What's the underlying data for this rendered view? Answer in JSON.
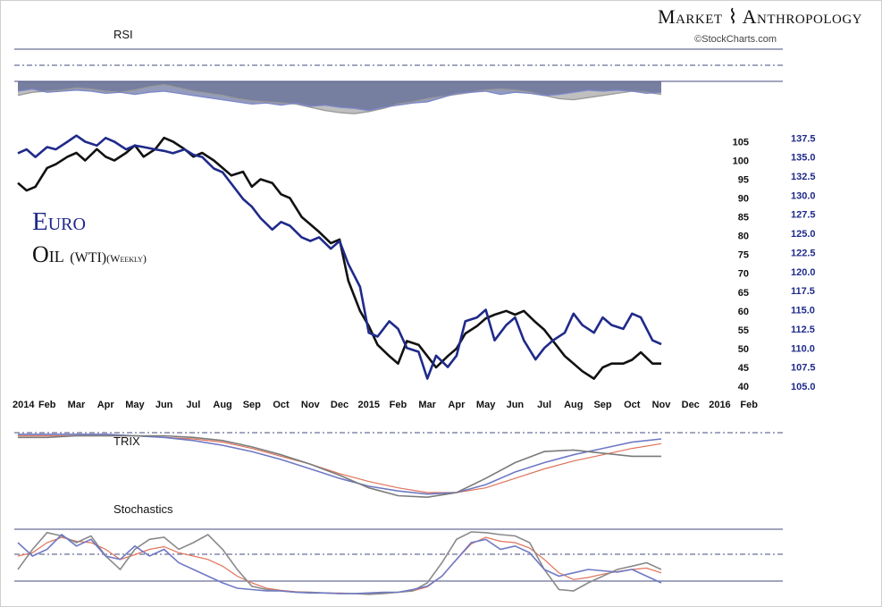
{
  "header": {
    "brand": "Market ⌇ Anthropology",
    "credit": "©StockCharts.com"
  },
  "panels": {
    "rsi_label": "RSI",
    "trix_label": "TRIX",
    "stoch_label": "Stochastics"
  },
  "legend": {
    "euro": "Euro",
    "oil": "Oil",
    "oil_sub": "(WTI)",
    "oil_period": "(Weekly)"
  },
  "colors": {
    "euro": "#1f2a8a",
    "oil": "#111111",
    "oil_tick": "#111111",
    "euro_tick": "#1f2a8a",
    "trix_signal": "#e0735a",
    "stoch_blue": "#6f79c4",
    "stoch_gray": "#8a8a8a"
  },
  "chart_data": {
    "type": "line",
    "x_labels": [
      "2014",
      "Feb",
      "Mar",
      "Apr",
      "May",
      "Jun",
      "Jul",
      "Aug",
      "Sep",
      "Oct",
      "Nov",
      "Dec",
      "2015",
      "Feb",
      "Mar",
      "Apr",
      "May",
      "Jun",
      "Jul",
      "Aug",
      "Sep",
      "Oct",
      "Nov",
      "Dec",
      "2016",
      "Feb"
    ],
    "x_label_months": [
      0,
      1,
      2,
      3,
      4,
      5,
      6,
      7,
      8,
      9,
      10,
      11,
      12,
      13,
      14,
      15,
      16,
      17,
      18,
      19,
      20,
      21,
      22,
      23,
      24,
      25
    ],
    "oil_axis": {
      "ticks": [
        40,
        45,
        50,
        55,
        60,
        65,
        70,
        75,
        80,
        85,
        90,
        95,
        100,
        105
      ],
      "range": [
        40,
        107
      ]
    },
    "euro_axis": {
      "ticks": [
        "105.0",
        "107.5",
        "110.0",
        "112.5",
        "115.0",
        "117.5",
        "120.0",
        "122.5",
        "125.0",
        "127.5",
        "130.0",
        "132.5",
        "135.0",
        "137.5"
      ],
      "range": [
        105.0,
        138.0
      ]
    },
    "x_range_months": [
      0,
      25.3
    ],
    "series": [
      {
        "name": "Oil (WTI)",
        "axis": "left",
        "months": [
          0,
          0.3,
          0.6,
          1.0,
          1.3,
          1.7,
          2.0,
          2.3,
          2.7,
          3.0,
          3.3,
          3.7,
          4.0,
          4.3,
          4.7,
          5.0,
          5.3,
          5.7,
          6.0,
          6.3,
          6.7,
          7.0,
          7.3,
          7.7,
          8.0,
          8.3,
          8.7,
          9.0,
          9.3,
          9.7,
          10.0,
          10.3,
          10.7,
          11.0,
          11.3,
          11.7,
          12.0,
          12.3,
          12.7,
          13.0,
          13.3,
          13.7,
          14.0,
          14.3,
          14.7,
          15.0,
          15.3,
          15.7,
          16.0,
          16.3,
          16.7,
          17.0,
          17.3,
          17.7,
          18.0,
          18.3,
          18.7,
          19.0,
          19.3,
          19.7,
          20.0,
          20.3,
          20.7,
          21.0,
          21.3,
          21.7,
          22.0
        ],
        "values": [
          94,
          92,
          93,
          98,
          99,
          101,
          102,
          100,
          103,
          101,
          100,
          102,
          104,
          101,
          103,
          106,
          105,
          103,
          101,
          102,
          100,
          98,
          96,
          97,
          93,
          95,
          94,
          91,
          90,
          85,
          83,
          81,
          78,
          79,
          68,
          60,
          56,
          51,
          48,
          46,
          52,
          51,
          48,
          45,
          48,
          50,
          54,
          56,
          58,
          59,
          60,
          59,
          60,
          57,
          55,
          52,
          48,
          46,
          44,
          42,
          45,
          46,
          46,
          47,
          49,
          46,
          46
        ]
      },
      {
        "name": "Euro",
        "axis": "right",
        "months": [
          0,
          0.3,
          0.6,
          1.0,
          1.3,
          1.7,
          2.0,
          2.3,
          2.7,
          3.0,
          3.3,
          3.7,
          4.0,
          4.3,
          4.7,
          5.0,
          5.3,
          5.7,
          6.0,
          6.3,
          6.7,
          7.0,
          7.3,
          7.7,
          8.0,
          8.3,
          8.7,
          9.0,
          9.3,
          9.7,
          10.0,
          10.3,
          10.7,
          11.0,
          11.3,
          11.7,
          12.0,
          12.3,
          12.7,
          13.0,
          13.3,
          13.7,
          14.0,
          14.3,
          14.7,
          15.0,
          15.3,
          15.7,
          16.0,
          16.3,
          16.7,
          17.0,
          17.3,
          17.7,
          18.0,
          18.3,
          18.7,
          19.0,
          19.3,
          19.7,
          20.0,
          20.3,
          20.7,
          21.0,
          21.3,
          21.7,
          22.0
        ],
        "values": [
          135.5,
          136.0,
          135.0,
          136.3,
          136.0,
          137.0,
          137.8,
          137.0,
          136.5,
          137.5,
          137.0,
          136.0,
          136.5,
          136.3,
          136.0,
          135.8,
          135.5,
          136.0,
          135.3,
          135.0,
          133.5,
          133.0,
          131.5,
          129.5,
          128.5,
          127.0,
          125.5,
          126.5,
          126.0,
          124.5,
          124.0,
          124.5,
          123.0,
          124.0,
          121.0,
          118.0,
          112.0,
          111.5,
          113.5,
          112.5,
          110.0,
          109.5,
          106.0,
          109.0,
          107.5,
          109.0,
          113.5,
          114.0,
          115.0,
          111.0,
          113.0,
          114.0,
          111.0,
          108.5,
          110.0,
          111.0,
          112.0,
          114.5,
          113.0,
          112.0,
          114.0,
          113.0,
          112.5,
          114.5,
          114.0,
          111.0,
          110.5
        ]
      }
    ],
    "rsi": {
      "oil_months": [
        0,
        0.5,
        1.0,
        1.5,
        2.0,
        2.5,
        3.0,
        3.5,
        4.0,
        4.5,
        5.0,
        5.5,
        6.0,
        6.5,
        7.0,
        7.5,
        8.0,
        8.5,
        9.0,
        9.5,
        10.0,
        10.5,
        11.0,
        11.5,
        12.0,
        12.5,
        13.0,
        13.5,
        14.0,
        14.5,
        15.0,
        15.5,
        16.0,
        16.5,
        17.0,
        17.5,
        18.0,
        18.5,
        19.0,
        19.5,
        20.0,
        20.5,
        21.0,
        21.5,
        22.0
      ],
      "oil_values": [
        52,
        58,
        60,
        62,
        66,
        64,
        60,
        58,
        62,
        68,
        72,
        66,
        60,
        56,
        52,
        46,
        42,
        40,
        38,
        36,
        30,
        24,
        20,
        18,
        22,
        28,
        36,
        40,
        46,
        50,
        54,
        58,
        62,
        64,
        62,
        58,
        52,
        46,
        44,
        48,
        52,
        56,
        60,
        58,
        54
      ],
      "euro_months": [
        0,
        0.5,
        1.0,
        1.5,
        2.0,
        2.5,
        3.0,
        3.5,
        4.0,
        4.5,
        5.0,
        5.5,
        6.0,
        6.5,
        7.0,
        7.5,
        8.0,
        8.5,
        9.0,
        9.5,
        10.0,
        10.5,
        11.0,
        11.5,
        12.0,
        12.5,
        13.0,
        13.5,
        14.0,
        14.5,
        15.0,
        15.5,
        16.0,
        16.5,
        17.0,
        17.5,
        18.0,
        18.5,
        19.0,
        19.5,
        20.0,
        20.5,
        21.0,
        21.5,
        22.0
      ],
      "euro_values": [
        60,
        64,
        58,
        60,
        62,
        60,
        56,
        58,
        54,
        58,
        60,
        56,
        52,
        48,
        44,
        40,
        36,
        38,
        34,
        38,
        32,
        34,
        30,
        28,
        24,
        30,
        34,
        38,
        40,
        48,
        56,
        58,
        60,
        54,
        58,
        56,
        52,
        54,
        58,
        62,
        60,
        62,
        60,
        56,
        58
      ]
    },
    "trix": {
      "months": [
        0,
        1,
        2,
        3,
        4,
        5,
        6,
        7,
        8,
        9,
        10,
        11,
        12,
        13,
        14,
        15,
        16,
        17,
        18,
        19,
        20,
        21,
        22
      ],
      "oil": [
        0.02,
        0.02,
        0.03,
        0.03,
        0.03,
        0.03,
        0.02,
        0.0,
        -0.04,
        -0.09,
        -0.15,
        -0.22,
        -0.3,
        -0.35,
        -0.36,
        -0.33,
        -0.24,
        -0.14,
        -0.07,
        -0.06,
        -0.08,
        -0.1,
        -0.1
      ],
      "euro": [
        0.04,
        0.04,
        0.04,
        0.04,
        0.03,
        0.02,
        0.0,
        -0.03,
        -0.07,
        -0.12,
        -0.18,
        -0.24,
        -0.29,
        -0.32,
        -0.34,
        -0.33,
        -0.28,
        -0.2,
        -0.14,
        -0.09,
        -0.05,
        -0.01,
        0.01
      ],
      "signal": [
        0.03,
        0.03,
        0.03,
        0.03,
        0.03,
        0.02,
        0.01,
        -0.01,
        -0.05,
        -0.1,
        -0.15,
        -0.21,
        -0.26,
        -0.3,
        -0.33,
        -0.33,
        -0.3,
        -0.24,
        -0.18,
        -0.13,
        -0.09,
        -0.05,
        -0.02
      ]
    },
    "stochastics": {
      "months": [
        0,
        0.5,
        1.0,
        1.5,
        2.0,
        2.5,
        3.0,
        3.5,
        4.0,
        4.5,
        5.0,
        5.5,
        6.0,
        6.5,
        7.0,
        7.5,
        8.0,
        8.5,
        9.0,
        9.5,
        10.0,
        10.5,
        11.0,
        11.5,
        12.0,
        12.5,
        13.0,
        13.5,
        14.0,
        14.5,
        15.0,
        15.5,
        16.0,
        16.5,
        17.0,
        17.5,
        18.0,
        18.5,
        19.0,
        19.5,
        20.0,
        20.5,
        21.0,
        21.5,
        22.0
      ],
      "oil": [
        40,
        70,
        95,
        90,
        80,
        90,
        60,
        40,
        70,
        85,
        88,
        70,
        80,
        92,
        70,
        40,
        15,
        10,
        8,
        6,
        6,
        5,
        4,
        4,
        3,
        4,
        6,
        8,
        20,
        50,
        85,
        96,
        95,
        92,
        90,
        80,
        40,
        10,
        8,
        20,
        30,
        40,
        45,
        50,
        40
      ],
      "euro": [
        80,
        60,
        70,
        92,
        75,
        85,
        60,
        55,
        75,
        60,
        70,
        50,
        40,
        30,
        20,
        12,
        10,
        8,
        8,
        6,
        5,
        5,
        4,
        4,
        5,
        6,
        6,
        10,
        15,
        30,
        55,
        80,
        85,
        70,
        75,
        65,
        40,
        30,
        35,
        40,
        38,
        36,
        40,
        30,
        20
      ],
      "signal": [
        60,
        65,
        80,
        88,
        82,
        80,
        70,
        55,
        62,
        70,
        74,
        65,
        60,
        55,
        45,
        30,
        20,
        12,
        9,
        7,
        6,
        5,
        5,
        4,
        4,
        5,
        6,
        8,
        14,
        30,
        55,
        78,
        88,
        82,
        80,
        72,
        55,
        35,
        25,
        28,
        33,
        37,
        40,
        42,
        35
      ]
    }
  }
}
